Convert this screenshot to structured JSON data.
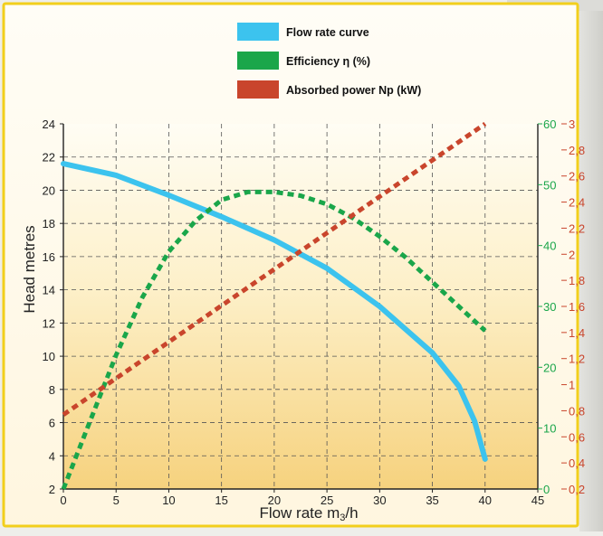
{
  "chart_data": {
    "type": "line",
    "xlabel": "Flow rate m",
    "xlabel_sub": "3",
    "xlabel_tail": "/h",
    "ylabel": "Head metres",
    "xlim": [
      0,
      45
    ],
    "x_ticks": [
      "0",
      "5",
      "10",
      "15",
      "20",
      "25",
      "30",
      "35",
      "40",
      "45"
    ],
    "ylim": [
      2,
      24
    ],
    "y_ticks": [
      "2",
      "4",
      "6",
      "8",
      "10",
      "12",
      "14",
      "16",
      "18",
      "20",
      "22",
      "24"
    ],
    "y2_efficiency_lim": [
      0,
      60
    ],
    "y2_efficiency_ticks": [
      "0",
      "10",
      "20",
      "30",
      "40",
      "50",
      "60"
    ],
    "y3_power_lim": [
      0.2,
      3
    ],
    "y3_power_ticks": [
      "0,2",
      "0,4",
      "0,6",
      "0,8",
      "1",
      "1,2",
      "1,4",
      "1,6",
      "1,8",
      "2",
      "2,2",
      "2,4",
      "2,6",
      "2,8",
      "3"
    ],
    "grid": true,
    "legend_position": "top-center",
    "series": [
      {
        "name": "Flow rate curve",
        "axis": "head",
        "color": "#3cc3ee",
        "style": "solid",
        "x": [
          0,
          5,
          10,
          15,
          20,
          25,
          30,
          35,
          37.5,
          39,
          40
        ],
        "y": [
          21.6,
          20.9,
          19.7,
          18.4,
          17.0,
          15.3,
          13.0,
          10.2,
          8.2,
          6.1,
          3.8
        ]
      },
      {
        "name": "Efficiency η (%)",
        "axis": "efficiency",
        "color": "#1aa64a",
        "style": "dashed",
        "x": [
          0,
          2.5,
          5,
          7.5,
          10,
          12.5,
          15,
          17.5,
          20,
          22.5,
          25,
          27.5,
          30,
          32.5,
          35,
          37.5,
          40
        ],
        "y": [
          0,
          11,
          22,
          31.5,
          39,
          44,
          47.5,
          48.8,
          48.8,
          48.2,
          46.8,
          44.5,
          41.5,
          38,
          34,
          30,
          26
        ]
      },
      {
        "name": "Absorbed power Np (kW)",
        "axis": "power",
        "color": "#c9452c",
        "style": "dashed",
        "x": [
          0,
          40
        ],
        "y": [
          0.77,
          3.0
        ]
      }
    ]
  }
}
